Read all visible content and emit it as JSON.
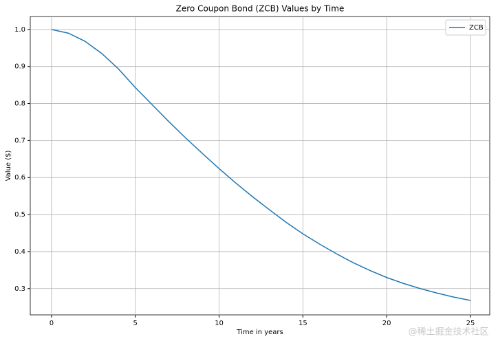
{
  "chart_data": {
    "type": "line",
    "title": "Zero Coupon Bond (ZCB) Values by Time",
    "x_label": "Time in years",
    "y_label": "Value ($)",
    "x": [
      0,
      1,
      2,
      3,
      4,
      5,
      6,
      7,
      8,
      9,
      10,
      11,
      12,
      13,
      14,
      15,
      16,
      17,
      18,
      19,
      20,
      21,
      22,
      23,
      24,
      25
    ],
    "series": [
      {
        "name": "ZCB",
        "color": "#1f77b4",
        "values": [
          1.0,
          0.99,
          0.968,
          0.935,
          0.893,
          0.843,
          0.797,
          0.751,
          0.707,
          0.665,
          0.624,
          0.585,
          0.548,
          0.513,
          0.479,
          0.448,
          0.42,
          0.394,
          0.37,
          0.349,
          0.33,
          0.314,
          0.3,
          0.288,
          0.277,
          0.268
        ]
      }
    ],
    "xlim": [
      -1.27,
      26.15
    ],
    "ylim": [
      0.229,
      1.035
    ],
    "xticks": [
      0,
      5,
      10,
      15,
      20,
      25
    ],
    "yticks": [
      0.3,
      0.4,
      0.5,
      0.6,
      0.7,
      0.8,
      0.9,
      {
        "value": 1.0,
        "label": "1.0"
      }
    ],
    "grid": true,
    "legend": "upper right"
  },
  "watermark": "@稀土掘金技术社区"
}
